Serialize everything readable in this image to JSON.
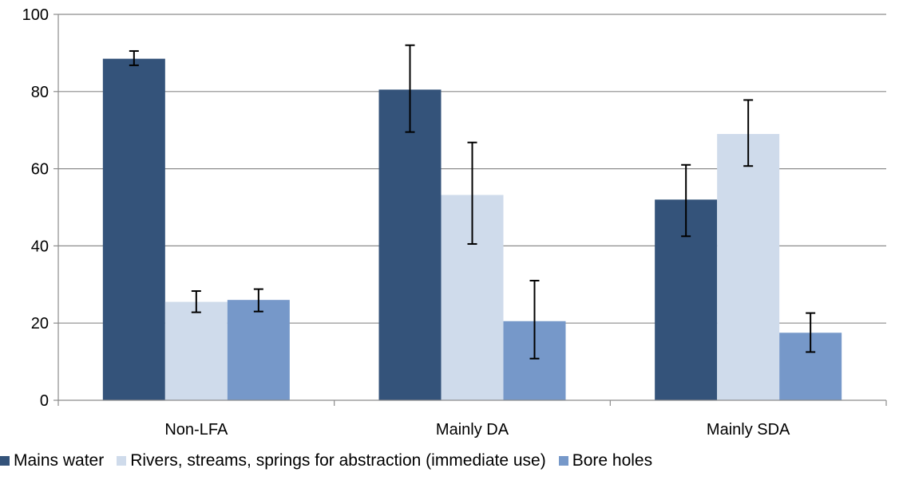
{
  "chart_data": {
    "type": "bar",
    "categories": [
      "Non-LFA",
      "Mainly DA",
      "Mainly SDA"
    ],
    "series": [
      {
        "name": "Mains water",
        "color": "#34537a",
        "values": [
          88.5,
          80.5,
          52
        ],
        "error_low": [
          86.8,
          69.5,
          42.5
        ],
        "error_high": [
          90.5,
          92,
          61
        ]
      },
      {
        "name": "Rivers, streams, springs for abstraction (immediate use)",
        "color": "#cfdbeb",
        "values": [
          25.5,
          53.2,
          69
        ],
        "error_low": [
          22.8,
          40.5,
          60.7
        ],
        "error_high": [
          28.3,
          66.8,
          77.8
        ]
      },
      {
        "name": "Bore holes",
        "color": "#7698c9",
        "values": [
          26,
          20.5,
          17.5
        ],
        "error_low": [
          23,
          10.8,
          12.5
        ],
        "error_high": [
          28.8,
          31,
          22.6
        ]
      }
    ],
    "y_ticks": [
      0,
      20,
      40,
      60,
      80,
      100
    ],
    "ylim": [
      0,
      100
    ],
    "grid": true,
    "legend_position": "bottom",
    "title": "",
    "xlabel": "",
    "ylabel": ""
  }
}
